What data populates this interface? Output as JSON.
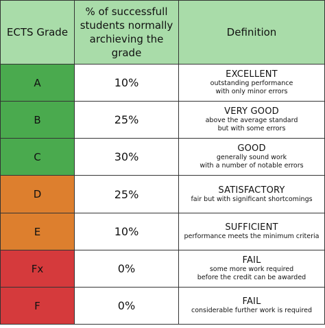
{
  "header": {
    "col1": "ECTS Grade",
    "col2_line1": "% of successfull",
    "col2_line2": "students normally",
    "col2_line3": "archieving the grade",
    "col3": "Definition"
  },
  "colors": {
    "header_bg": "#a9dca9",
    "green": "#4aaa4e",
    "orange": "#dd7f2e",
    "red": "#d53a3c"
  },
  "rows": [
    {
      "grade": "A",
      "percent": "10%",
      "title": "EXCELLENT",
      "desc1": "outstanding performance",
      "desc2": "with only minor errors",
      "color": "green"
    },
    {
      "grade": "B",
      "percent": "25%",
      "title": "VERY GOOD",
      "desc1": "above the average standard",
      "desc2": "but with some errors",
      "color": "green"
    },
    {
      "grade": "C",
      "percent": "30%",
      "title": "GOOD",
      "desc1": "generally sound work",
      "desc2": "with a number of notable errors",
      "color": "green"
    },
    {
      "grade": "D",
      "percent": "25%",
      "title": "SATISFACTORY",
      "desc1": "fair but with significant shortcomings",
      "desc2": "",
      "color": "orange"
    },
    {
      "grade": "E",
      "percent": "10%",
      "title": "SUFFICIENT",
      "desc1": "performance meets the minimum criteria",
      "desc2": "",
      "color": "orange"
    },
    {
      "grade": "Fx",
      "percent": "0%",
      "title": "FAIL",
      "desc1": "some more work required",
      "desc2": "before the credit can be awarded",
      "color": "red"
    },
    {
      "grade": "F",
      "percent": "0%",
      "title": "FAIL",
      "desc1": "considerable further work is required",
      "desc2": "",
      "color": "red"
    }
  ]
}
